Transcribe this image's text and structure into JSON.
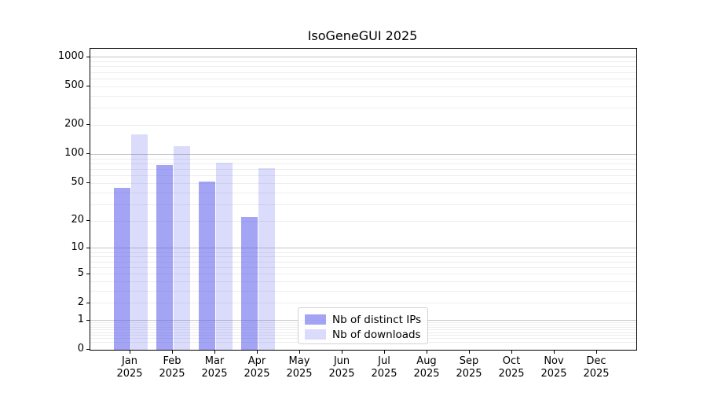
{
  "chart_data": {
    "type": "bar",
    "title": "IsoGeneGUI 2025",
    "categories": [
      "Jan",
      "Feb",
      "Mar",
      "Apr",
      "May",
      "Jun",
      "Jul",
      "Aug",
      "Sep",
      "Oct",
      "Nov",
      "Dec"
    ],
    "category_year": "2025",
    "series": [
      {
        "name": "Nb of distinct IPs",
        "base_color": "#5a5aeb",
        "color": "rgba(90,90,235,0.55)",
        "values": [
          45,
          78,
          52,
          22,
          null,
          null,
          null,
          null,
          null,
          null,
          null,
          null
        ]
      },
      {
        "name": "Nb of downloads",
        "base_color": "#5a5aeb",
        "color": "rgba(90,90,235,0.22)",
        "values": [
          160,
          122,
          82,
          72,
          null,
          null,
          null,
          null,
          null,
          null,
          null,
          null
        ]
      }
    ],
    "xlabel": "",
    "ylabel": "",
    "yscale": "log1p",
    "yticks": [
      0,
      1,
      2,
      5,
      10,
      20,
      50,
      100,
      200,
      500,
      1000
    ],
    "ylim": [
      0,
      1230
    ],
    "grid": {
      "visible": true,
      "major_values": [
        1,
        10,
        100,
        1000
      ],
      "minor": true
    },
    "legend": {
      "position": "inside-bottom-center"
    }
  }
}
